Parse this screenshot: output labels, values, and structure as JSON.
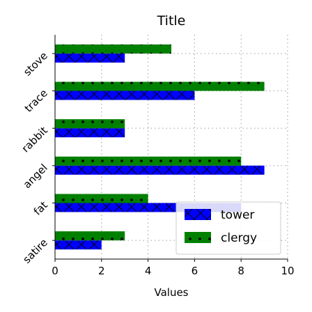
{
  "chart_data": {
    "type": "bar",
    "orientation": "horizontal",
    "title": "Title",
    "xlabel": "Values",
    "ylabel": "",
    "categories": [
      "satire",
      "fat",
      "angel",
      "rabbit",
      "trace",
      "stove"
    ],
    "series": [
      {
        "name": "tower",
        "values": [
          2,
          8,
          9,
          3,
          6,
          3
        ],
        "color": "#0000ff",
        "hatch": "cross"
      },
      {
        "name": "clergy",
        "values": [
          3,
          4,
          8,
          3,
          9,
          5
        ],
        "color": "#008000",
        "hatch": "dots"
      }
    ],
    "xlim": [
      0,
      10
    ],
    "xticks": [
      0,
      2,
      4,
      6,
      8,
      10
    ],
    "grid": true,
    "legend_position": "bottom-right"
  }
}
